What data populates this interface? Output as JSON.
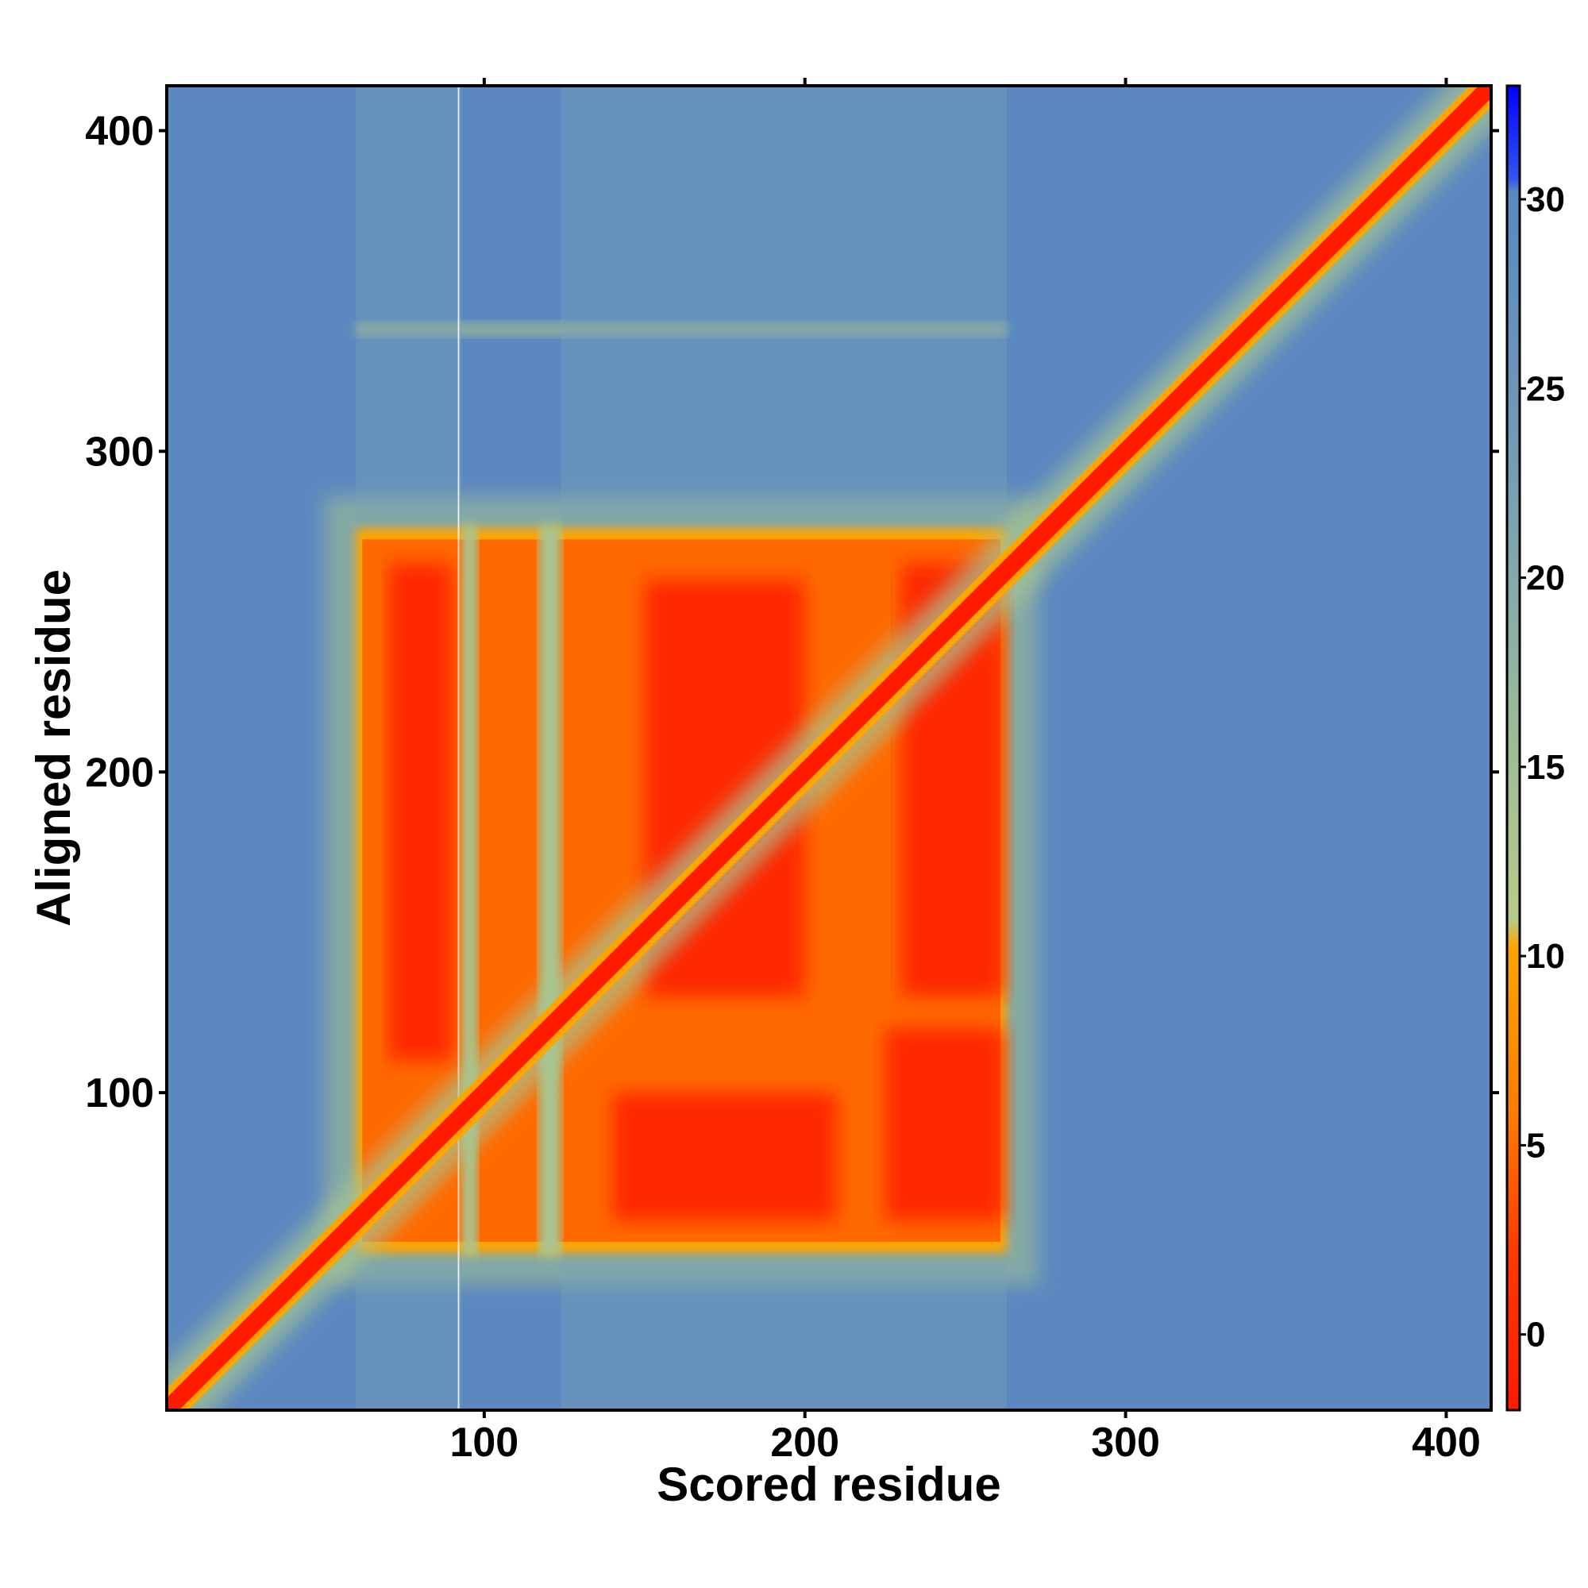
{
  "chart_data": {
    "type": "heatmap",
    "title": "",
    "xlabel": "Scored residue",
    "ylabel": "Aligned residue",
    "xlim": [
      1,
      414
    ],
    "ylim": [
      1,
      414
    ],
    "x_ticks": [
      "100",
      "200",
      "300",
      "400"
    ],
    "y_ticks": [
      "100",
      "200",
      "300",
      "400"
    ],
    "x_tick_values": [
      100,
      200,
      300,
      400
    ],
    "y_tick_values": [
      100,
      200,
      300,
      400
    ],
    "colorbar": {
      "range": [
        -2,
        33
      ],
      "ticks": [
        "0",
        "5",
        "10",
        "15",
        "20",
        "25",
        "30"
      ],
      "tick_values": [
        0,
        5,
        10,
        15,
        20,
        25,
        30
      ],
      "colors": {
        "low": "#ff1a00",
        "mid_low": "#ff6a00",
        "orange": "#ffa500",
        "mid": "#a8c590",
        "high": "#5b88c0",
        "max": "#0000ff"
      }
    },
    "matrix_description_values": {
      "background_value": 27,
      "diagonal_value": 0,
      "domain_block": {
        "x_range": [
          60,
          263
        ],
        "y_range": [
          50,
          276
        ],
        "value": 2
      },
      "gaps_x": [
        [
          93,
          98
        ],
        [
          117,
          124
        ]
      ],
      "faint_band_y": 338,
      "faint_band_x_range": [
        60,
        263
      ]
    }
  }
}
